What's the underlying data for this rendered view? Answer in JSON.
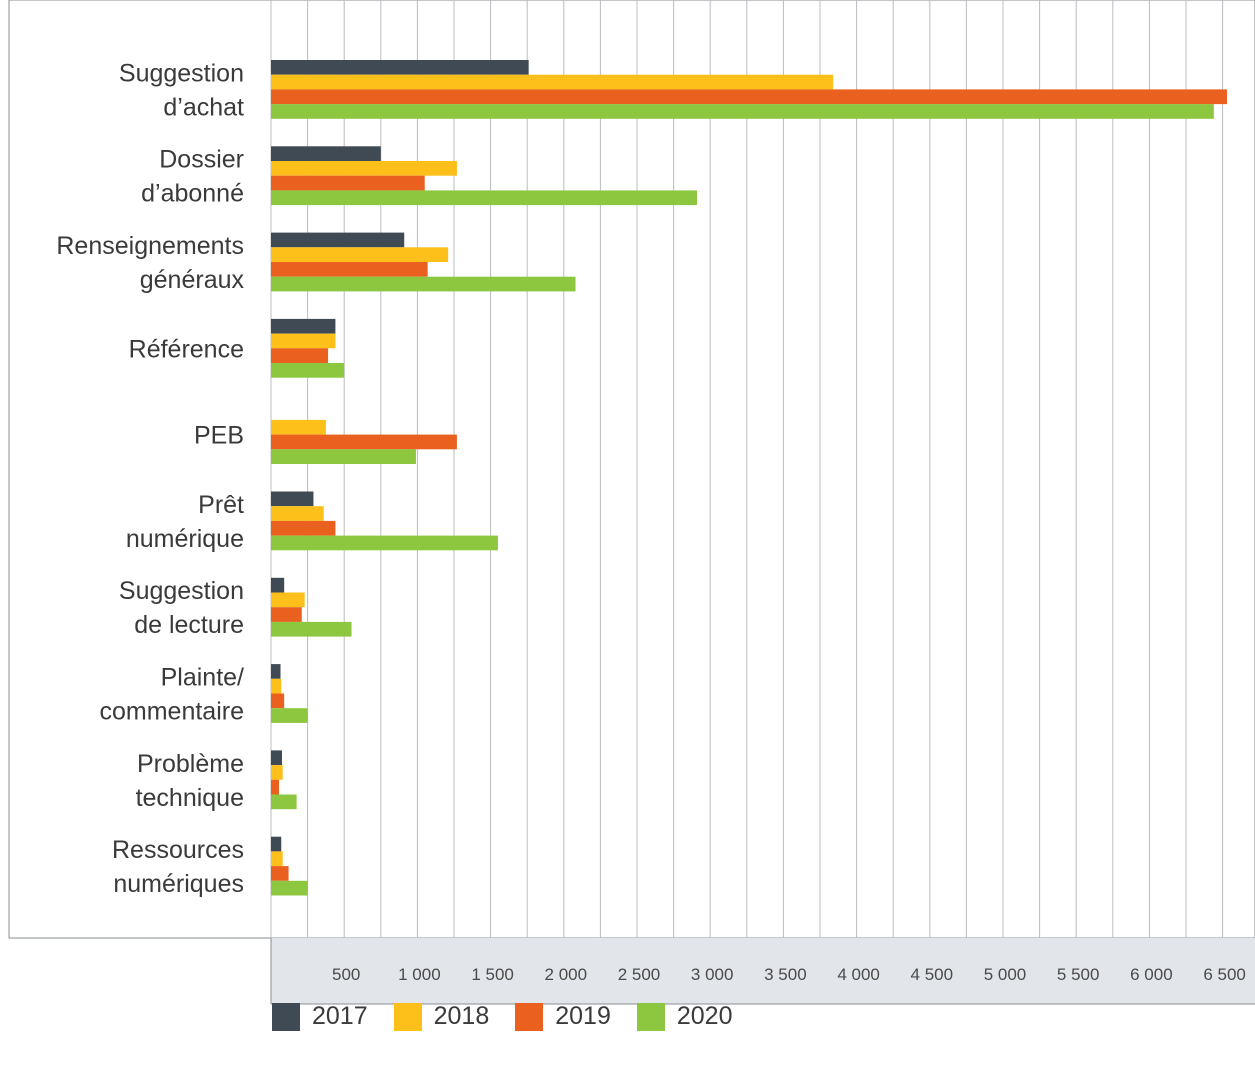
{
  "chart_data": {
    "type": "bar",
    "orientation": "horizontal",
    "categories": [
      [
        "Suggestion",
        "d’achat"
      ],
      [
        "Dossier",
        "d’abonné"
      ],
      [
        "Renseignements",
        "généraux"
      ],
      [
        "Référence"
      ],
      [
        "PEB"
      ],
      [
        "Prêt",
        "numérique"
      ],
      [
        "Suggestion",
        "de lecture"
      ],
      [
        "Plainte/",
        "commentaire"
      ],
      [
        "Problème",
        "technique"
      ],
      [
        "Ressources",
        "numériques"
      ]
    ],
    "series": [
      {
        "name": "2017",
        "color": "#3f4a54",
        "values": [
          1760,
          750,
          910,
          440,
          0,
          290,
          90,
          65,
          75,
          70
        ]
      },
      {
        "name": "2018",
        "color": "#fdc01a",
        "values": [
          3840,
          1270,
          1210,
          440,
          375,
          360,
          230,
          70,
          80,
          80
        ]
      },
      {
        "name": "2019",
        "color": "#e9601f",
        "values": [
          6530,
          1050,
          1070,
          390,
          1270,
          440,
          210,
          90,
          55,
          120
        ]
      },
      {
        "name": "2020",
        "color": "#8dc63f",
        "values": [
          6440,
          2910,
          2080,
          500,
          990,
          1550,
          550,
          250,
          175,
          250
        ]
      }
    ],
    "xticks": [
      500,
      1000,
      1500,
      2000,
      2500,
      3000,
      3500,
      4000,
      4500,
      5000,
      5500,
      6000,
      6500
    ],
    "xtick_labels": [
      "500",
      "1 000",
      "1 500",
      "2 000",
      "2 500",
      "3 000",
      "3 500",
      "4 000",
      "4 500",
      "5 000",
      "5 500",
      "6 000",
      "6 500"
    ],
    "xlim": [
      0,
      6750
    ],
    "grid": true,
    "legend_position": "bottom"
  }
}
